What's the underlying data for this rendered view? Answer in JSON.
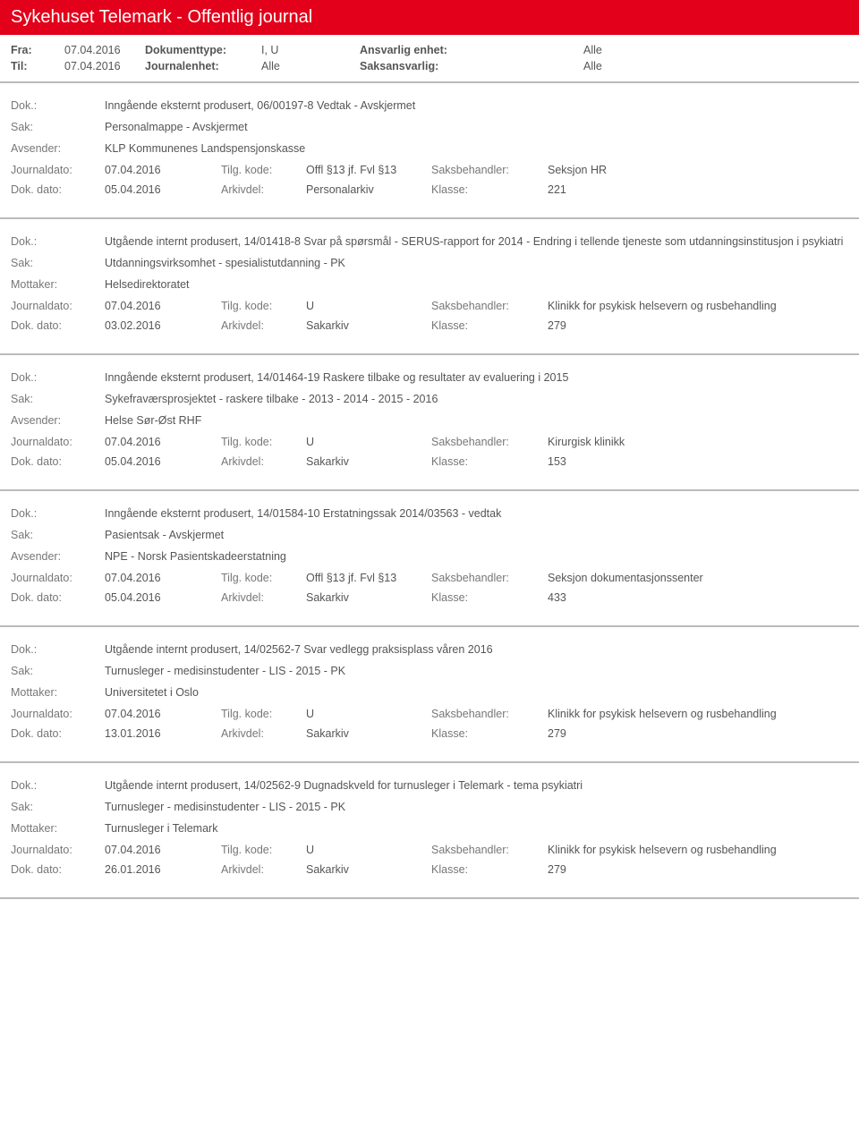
{
  "header": {
    "title": "Sykehuset Telemark - Offentlig journal"
  },
  "meta": {
    "fra_label": "Fra:",
    "fra_value": "07.04.2016",
    "til_label": "Til:",
    "til_value": "07.04.2016",
    "doktype_label": "Dokumenttype:",
    "doktype_value": "I, U",
    "journalenhet_label": "Journalenhet:",
    "journalenhet_value": "Alle",
    "ansvarlig_label": "Ansvarlig enhet:",
    "ansvarlig_value": "Alle",
    "saks_label": "Saksansvarlig:",
    "saks_value": "Alle"
  },
  "labels": {
    "dok": "Dok.:",
    "sak": "Sak:",
    "avsender": "Avsender:",
    "mottaker": "Mottaker:",
    "journaldato": "Journaldato:",
    "dokdato": "Dok. dato:",
    "tilgkode": "Tilg. kode:",
    "arkivdel": "Arkivdel:",
    "saksbehandler": "Saksbehandler:",
    "klasse": "Klasse:"
  },
  "entries": [
    {
      "dok": "Inngående eksternt produsert, 06/00197-8 Vedtak - Avskjermet",
      "sak": "Personalmappe - Avskjermet",
      "party_label": "Avsender:",
      "party_value": "KLP Kommunenes Landspensjonskasse",
      "journaldato": "07.04.2016",
      "tilgkode": "Offl §13 jf. Fvl §13",
      "saksbehandler": "Seksjon HR",
      "dokdato": "05.04.2016",
      "arkivdel": "Personalarkiv",
      "klasse": "221"
    },
    {
      "dok": "Utgående internt produsert, 14/01418-8 Svar på spørsmål - SERUS-rapport for 2014 - Endring i tellende tjeneste som utdanningsinstitusjon i psykiatri",
      "sak": "Utdanningsvirksomhet - spesialistutdanning - PK",
      "party_label": "Mottaker:",
      "party_value": "Helsedirektoratet",
      "journaldato": "07.04.2016",
      "tilgkode": "U",
      "saksbehandler": "Klinikk for psykisk helsevern og rusbehandling",
      "dokdato": "03.02.2016",
      "arkivdel": "Sakarkiv",
      "klasse": "279"
    },
    {
      "dok": "Inngående eksternt produsert, 14/01464-19 Raskere tilbake og resultater av evaluering i 2015",
      "sak": "Sykefraværsprosjektet - raskere tilbake - 2013 - 2014 - 2015 - 2016",
      "party_label": "Avsender:",
      "party_value": "Helse Sør-Øst RHF",
      "journaldato": "07.04.2016",
      "tilgkode": "U",
      "saksbehandler": "Kirurgisk klinikk",
      "dokdato": "05.04.2016",
      "arkivdel": "Sakarkiv",
      "klasse": "153"
    },
    {
      "dok": "Inngående eksternt produsert, 14/01584-10 Erstatningssak 2014/03563 - vedtak",
      "sak": "Pasientsak - Avskjermet",
      "party_label": "Avsender:",
      "party_value": "NPE - Norsk Pasientskadeerstatning",
      "journaldato": "07.04.2016",
      "tilgkode": "Offl §13 jf. Fvl §13",
      "saksbehandler": "Seksjon dokumentasjonssenter",
      "dokdato": "05.04.2016",
      "arkivdel": "Sakarkiv",
      "klasse": "433"
    },
    {
      "dok": "Utgående internt produsert, 14/02562-7 Svar vedlegg praksisplass våren 2016",
      "sak": "Turnusleger - medisinstudenter - LIS - 2015 - PK",
      "party_label": "Mottaker:",
      "party_value": "Universitetet i Oslo",
      "journaldato": "07.04.2016",
      "tilgkode": "U",
      "saksbehandler": "Klinikk for psykisk helsevern og rusbehandling",
      "dokdato": "13.01.2016",
      "arkivdel": "Sakarkiv",
      "klasse": "279"
    },
    {
      "dok": "Utgående internt produsert, 14/02562-9 Dugnadskveld for turnusleger i Telemark - tema psykiatri",
      "sak": "Turnusleger - medisinstudenter - LIS - 2015 - PK",
      "party_label": "Mottaker:",
      "party_value": "Turnusleger i Telemark",
      "journaldato": "07.04.2016",
      "tilgkode": "U",
      "saksbehandler": "Klinikk for psykisk helsevern og rusbehandling",
      "dokdato": "26.01.2016",
      "arkivdel": "Sakarkiv",
      "klasse": "279"
    }
  ]
}
